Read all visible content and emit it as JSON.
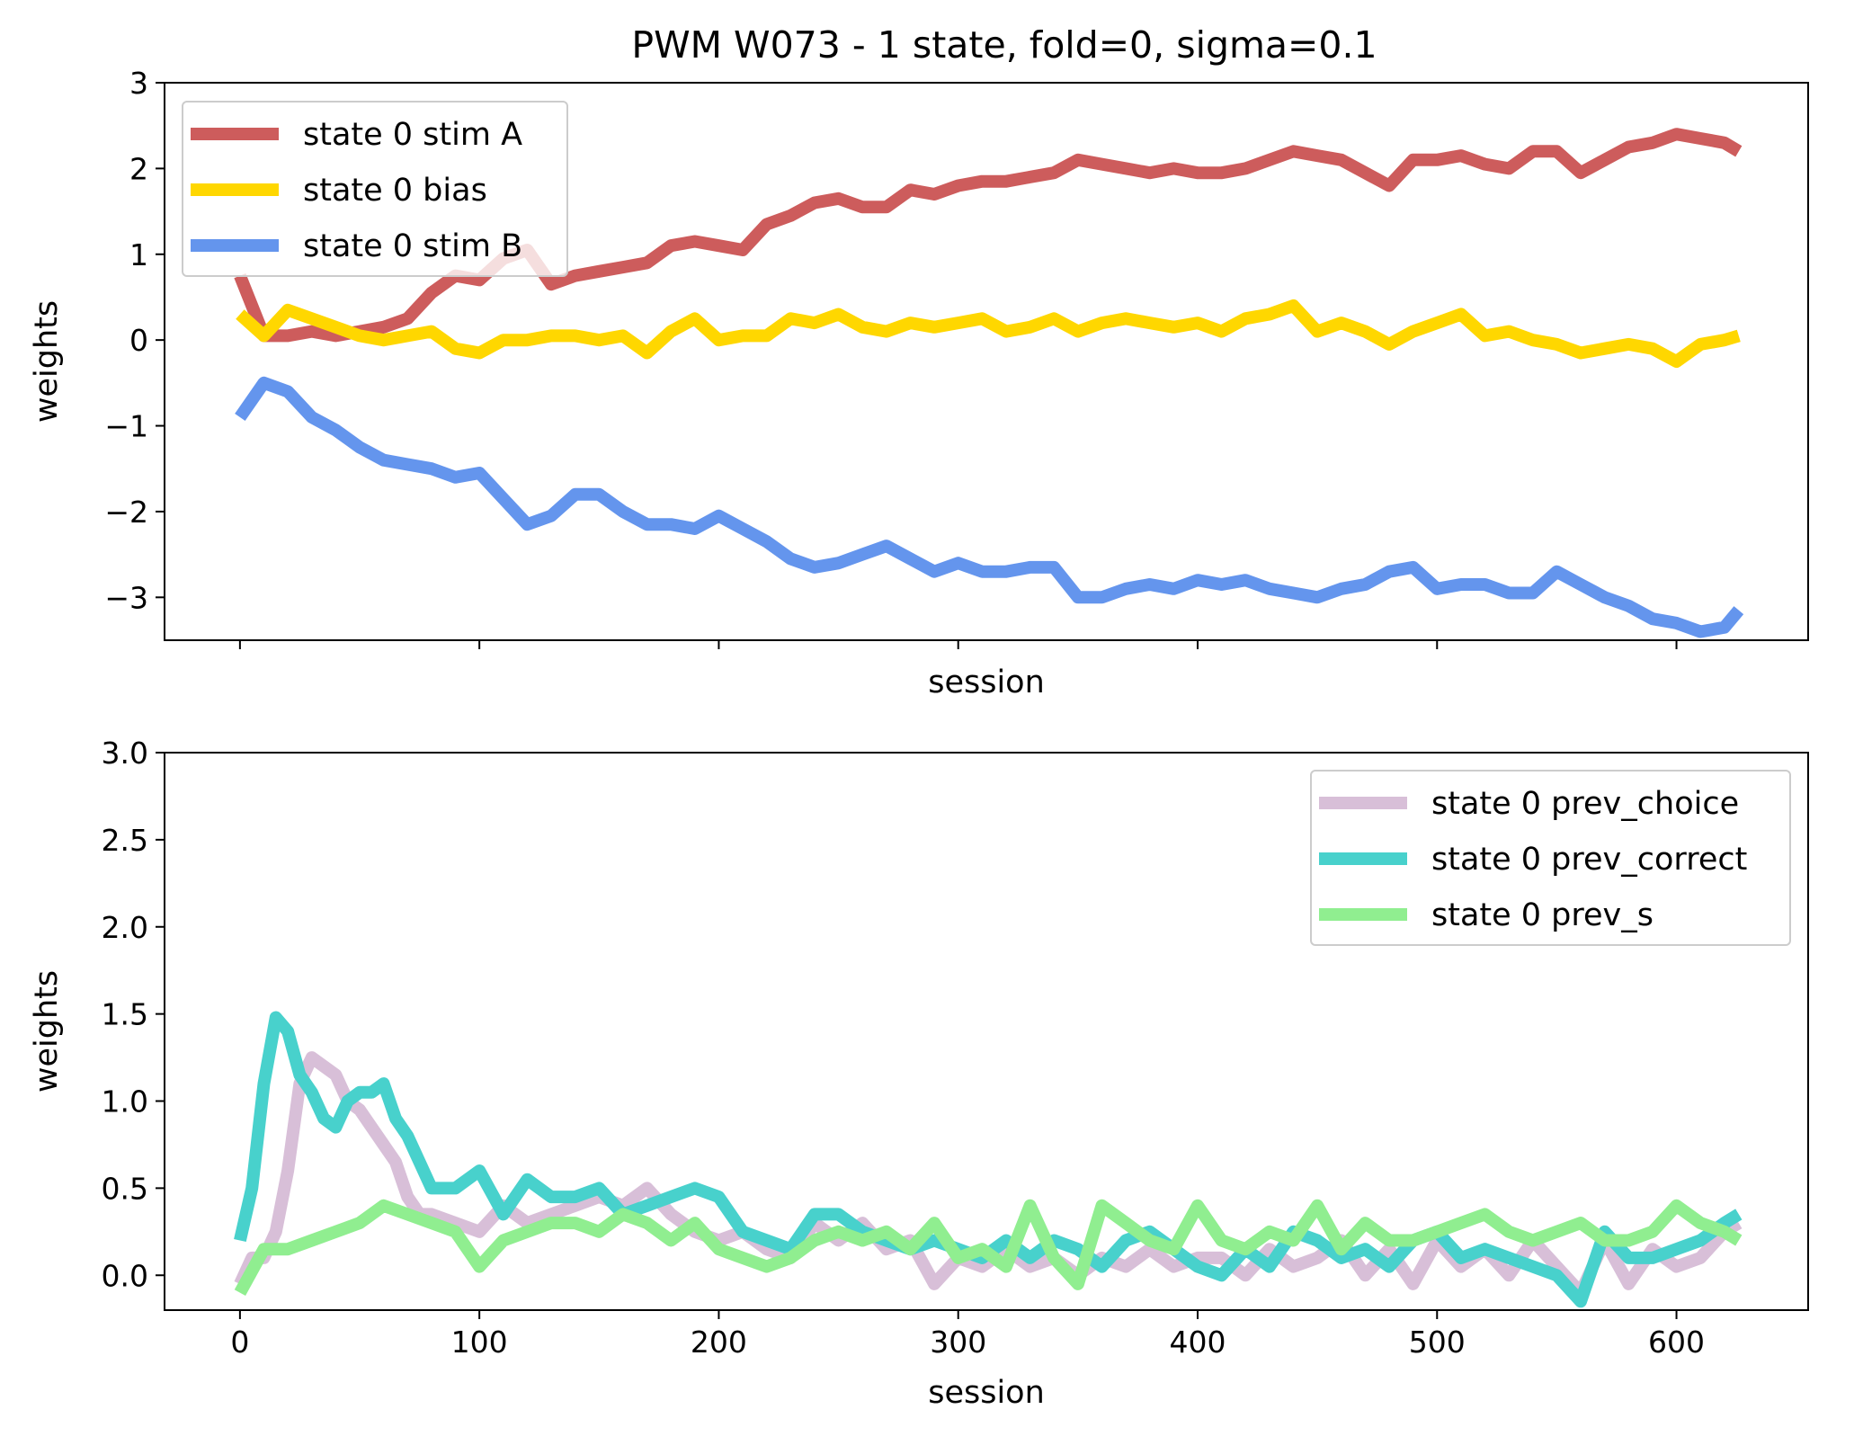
{
  "chart_data": [
    {
      "type": "line",
      "title": "PWM W073 - 1 state, fold=0, sigma=0.1",
      "xlabel": "session",
      "ylabel": "weights",
      "xlim": [
        -31.5,
        655
      ],
      "ylim": [
        -3.5,
        3.0
      ],
      "xticks": [
        0,
        100,
        200,
        300,
        400,
        500,
        600
      ],
      "show_xtick_labels": false,
      "yticks": [
        3,
        2,
        1,
        0,
        -1,
        -2,
        -3
      ],
      "ytick_labels": [
        "3",
        "2",
        "1",
        "0",
        "−1",
        "−2",
        "−3"
      ],
      "grid": false,
      "legend_position": "top-left",
      "series": [
        {
          "name": "state 0 stim A",
          "color": "#cd5c5c",
          "x": [
            0,
            10,
            20,
            30,
            40,
            50,
            60,
            70,
            80,
            90,
            100,
            110,
            120,
            130,
            140,
            150,
            160,
            170,
            180,
            190,
            200,
            210,
            220,
            230,
            240,
            250,
            260,
            270,
            280,
            290,
            300,
            310,
            320,
            330,
            340,
            350,
            360,
            370,
            380,
            390,
            400,
            410,
            420,
            430,
            440,
            450,
            460,
            470,
            480,
            490,
            500,
            510,
            520,
            530,
            540,
            550,
            560,
            570,
            580,
            590,
            600,
            610,
            620,
            626
          ],
          "y": [
            0.75,
            0.05,
            0.05,
            0.1,
            0.05,
            0.1,
            0.15,
            0.25,
            0.55,
            0.75,
            0.7,
            0.95,
            1.05,
            0.65,
            0.75,
            0.8,
            0.85,
            0.9,
            1.1,
            1.15,
            1.1,
            1.05,
            1.35,
            1.45,
            1.6,
            1.65,
            1.55,
            1.55,
            1.75,
            1.7,
            1.8,
            1.85,
            1.85,
            1.9,
            1.95,
            2.1,
            2.05,
            2.0,
            1.95,
            2.0,
            1.95,
            1.95,
            2.0,
            2.1,
            2.2,
            2.15,
            2.1,
            1.95,
            1.8,
            2.1,
            2.1,
            2.15,
            2.05,
            2.0,
            2.2,
            2.2,
            1.95,
            2.1,
            2.25,
            2.3,
            2.4,
            2.35,
            2.3,
            2.2
          ]
        },
        {
          "name": "state 0 bias",
          "color": "#ffd700",
          "x": [
            0,
            10,
            20,
            30,
            40,
            50,
            60,
            70,
            80,
            90,
            100,
            110,
            120,
            130,
            140,
            150,
            160,
            170,
            180,
            190,
            200,
            210,
            220,
            230,
            240,
            250,
            260,
            270,
            280,
            290,
            300,
            310,
            320,
            330,
            340,
            350,
            360,
            370,
            380,
            390,
            400,
            410,
            420,
            430,
            440,
            450,
            460,
            470,
            480,
            490,
            500,
            510,
            520,
            530,
            540,
            550,
            560,
            570,
            580,
            590,
            600,
            610,
            620,
            626
          ],
          "y": [
            0.3,
            0.05,
            0.35,
            0.25,
            0.15,
            0.05,
            0.0,
            0.05,
            0.1,
            -0.1,
            -0.15,
            0.0,
            0.0,
            0.05,
            0.05,
            0.0,
            0.05,
            -0.15,
            0.1,
            0.25,
            0.0,
            0.05,
            0.05,
            0.25,
            0.2,
            0.3,
            0.15,
            0.1,
            0.2,
            0.15,
            0.2,
            0.25,
            0.1,
            0.15,
            0.25,
            0.1,
            0.2,
            0.25,
            0.2,
            0.15,
            0.2,
            0.1,
            0.25,
            0.3,
            0.4,
            0.1,
            0.2,
            0.1,
            -0.05,
            0.1,
            0.2,
            0.3,
            0.05,
            0.1,
            0.0,
            -0.05,
            -0.15,
            -0.1,
            -0.05,
            -0.1,
            -0.25,
            -0.05,
            0.0,
            0.05
          ]
        },
        {
          "name": "state 0 stim B",
          "color": "#6495ed",
          "x": [
            0,
            10,
            20,
            30,
            40,
            50,
            60,
            70,
            80,
            90,
            100,
            110,
            120,
            130,
            140,
            150,
            160,
            170,
            180,
            190,
            200,
            210,
            220,
            230,
            240,
            250,
            260,
            270,
            280,
            290,
            300,
            310,
            320,
            330,
            340,
            350,
            360,
            370,
            380,
            390,
            400,
            410,
            420,
            430,
            440,
            450,
            460,
            470,
            480,
            490,
            500,
            510,
            520,
            530,
            540,
            550,
            560,
            570,
            580,
            590,
            600,
            610,
            620,
            626
          ],
          "y": [
            -0.9,
            -0.5,
            -0.6,
            -0.9,
            -1.05,
            -1.25,
            -1.4,
            -1.45,
            -1.5,
            -1.6,
            -1.55,
            -1.85,
            -2.15,
            -2.05,
            -1.8,
            -1.8,
            -2.0,
            -2.15,
            -2.15,
            -2.2,
            -2.05,
            -2.2,
            -2.35,
            -2.55,
            -2.65,
            -2.6,
            -2.5,
            -2.4,
            -2.55,
            -2.7,
            -2.6,
            -2.7,
            -2.7,
            -2.65,
            -2.65,
            -3.0,
            -3.0,
            -2.9,
            -2.85,
            -2.9,
            -2.8,
            -2.85,
            -2.8,
            -2.9,
            -2.95,
            -3.0,
            -2.9,
            -2.85,
            -2.7,
            -2.65,
            -2.9,
            -2.85,
            -2.85,
            -2.95,
            -2.95,
            -2.7,
            -2.85,
            -3.0,
            -3.1,
            -3.25,
            -3.3,
            -3.4,
            -3.35,
            -3.15
          ]
        }
      ]
    },
    {
      "type": "line",
      "xlabel": "session",
      "ylabel": "weights",
      "xlim": [
        -31.5,
        655
      ],
      "ylim": [
        -0.2,
        3.0
      ],
      "xticks": [
        0,
        100,
        200,
        300,
        400,
        500,
        600
      ],
      "xtick_labels": [
        "0",
        "100",
        "200",
        "300",
        "400",
        "500",
        "600"
      ],
      "yticks": [
        3.0,
        2.5,
        2.0,
        1.5,
        1.0,
        0.5,
        0.0
      ],
      "ytick_labels": [
        "3.0",
        "2.5",
        "2.0",
        "1.5",
        "1.0",
        "0.5",
        "0.0"
      ],
      "grid": false,
      "legend_position": "top-right",
      "series": [
        {
          "name": "state 0 prev_choice",
          "color": "#d8bfd8",
          "x": [
            0,
            5,
            10,
            15,
            20,
            25,
            30,
            35,
            40,
            45,
            50,
            55,
            60,
            65,
            70,
            75,
            80,
            90,
            100,
            110,
            120,
            130,
            140,
            150,
            160,
            170,
            180,
            190,
            200,
            210,
            220,
            230,
            240,
            250,
            260,
            270,
            280,
            290,
            300,
            310,
            320,
            330,
            340,
            350,
            360,
            370,
            380,
            390,
            400,
            410,
            420,
            430,
            440,
            450,
            460,
            470,
            480,
            490,
            500,
            510,
            520,
            530,
            540,
            550,
            560,
            570,
            580,
            590,
            600,
            610,
            620,
            626
          ],
          "y": [
            -0.05,
            0.1,
            0.1,
            0.25,
            0.6,
            1.1,
            1.25,
            1.2,
            1.15,
            1.0,
            0.95,
            0.85,
            0.75,
            0.65,
            0.45,
            0.35,
            0.35,
            0.3,
            0.25,
            0.4,
            0.3,
            0.35,
            0.4,
            0.45,
            0.4,
            0.5,
            0.35,
            0.25,
            0.2,
            0.25,
            0.15,
            0.1,
            0.3,
            0.2,
            0.3,
            0.15,
            0.2,
            -0.05,
            0.1,
            0.05,
            0.15,
            0.05,
            0.1,
            0.0,
            0.1,
            0.05,
            0.15,
            0.05,
            0.1,
            0.1,
            0.0,
            0.15,
            0.05,
            0.1,
            0.2,
            0.0,
            0.15,
            -0.05,
            0.2,
            0.05,
            0.15,
            0.0,
            0.2,
            0.05,
            -0.1,
            0.2,
            -0.05,
            0.15,
            0.05,
            0.1,
            0.25,
            0.3
          ]
        },
        {
          "name": "state 0 prev_correct",
          "color": "#48d1cc",
          "x": [
            0,
            5,
            10,
            15,
            20,
            25,
            30,
            35,
            40,
            45,
            50,
            55,
            60,
            65,
            70,
            75,
            80,
            90,
            100,
            110,
            120,
            130,
            140,
            150,
            160,
            170,
            180,
            190,
            200,
            210,
            220,
            230,
            240,
            250,
            260,
            270,
            280,
            290,
            300,
            310,
            320,
            330,
            340,
            350,
            360,
            370,
            380,
            390,
            400,
            410,
            420,
            430,
            440,
            450,
            460,
            470,
            480,
            490,
            500,
            510,
            520,
            530,
            540,
            550,
            560,
            570,
            580,
            590,
            600,
            610,
            620,
            626
          ],
          "y": [
            0.2,
            0.5,
            1.1,
            1.48,
            1.4,
            1.15,
            1.05,
            0.9,
            0.85,
            1.0,
            1.05,
            1.05,
            1.1,
            0.9,
            0.8,
            0.65,
            0.5,
            0.5,
            0.6,
            0.35,
            0.55,
            0.45,
            0.45,
            0.5,
            0.35,
            0.4,
            0.45,
            0.5,
            0.45,
            0.25,
            0.2,
            0.15,
            0.35,
            0.35,
            0.25,
            0.2,
            0.15,
            0.2,
            0.15,
            0.1,
            0.2,
            0.1,
            0.2,
            0.15,
            0.05,
            0.2,
            0.25,
            0.15,
            0.05,
            0.0,
            0.15,
            0.05,
            0.25,
            0.2,
            0.1,
            0.15,
            0.05,
            0.2,
            0.25,
            0.1,
            0.15,
            0.1,
            0.05,
            0.0,
            -0.15,
            0.25,
            0.1,
            0.1,
            0.15,
            0.2,
            0.3,
            0.35
          ]
        },
        {
          "name": "state 0 prev_s",
          "color": "#90ee90",
          "x": [
            0,
            10,
            20,
            30,
            40,
            50,
            60,
            70,
            80,
            90,
            100,
            110,
            120,
            130,
            140,
            150,
            160,
            170,
            180,
            190,
            200,
            210,
            220,
            230,
            240,
            250,
            260,
            270,
            280,
            290,
            300,
            310,
            320,
            330,
            340,
            350,
            360,
            370,
            380,
            390,
            400,
            410,
            420,
            430,
            440,
            450,
            460,
            470,
            480,
            490,
            500,
            510,
            520,
            530,
            540,
            550,
            560,
            570,
            580,
            590,
            600,
            610,
            620,
            626
          ],
          "y": [
            -0.1,
            0.15,
            0.15,
            0.2,
            0.25,
            0.3,
            0.4,
            0.35,
            0.3,
            0.25,
            0.05,
            0.2,
            0.25,
            0.3,
            0.3,
            0.25,
            0.35,
            0.3,
            0.2,
            0.3,
            0.15,
            0.1,
            0.05,
            0.1,
            0.2,
            0.25,
            0.2,
            0.25,
            0.15,
            0.3,
            0.1,
            0.15,
            0.05,
            0.4,
            0.1,
            -0.05,
            0.4,
            0.3,
            0.2,
            0.15,
            0.4,
            0.2,
            0.15,
            0.25,
            0.2,
            0.4,
            0.15,
            0.3,
            0.2,
            0.2,
            0.25,
            0.3,
            0.35,
            0.25,
            0.2,
            0.25,
            0.3,
            0.2,
            0.2,
            0.25,
            0.4,
            0.3,
            0.25,
            0.2
          ]
        }
      ]
    }
  ]
}
